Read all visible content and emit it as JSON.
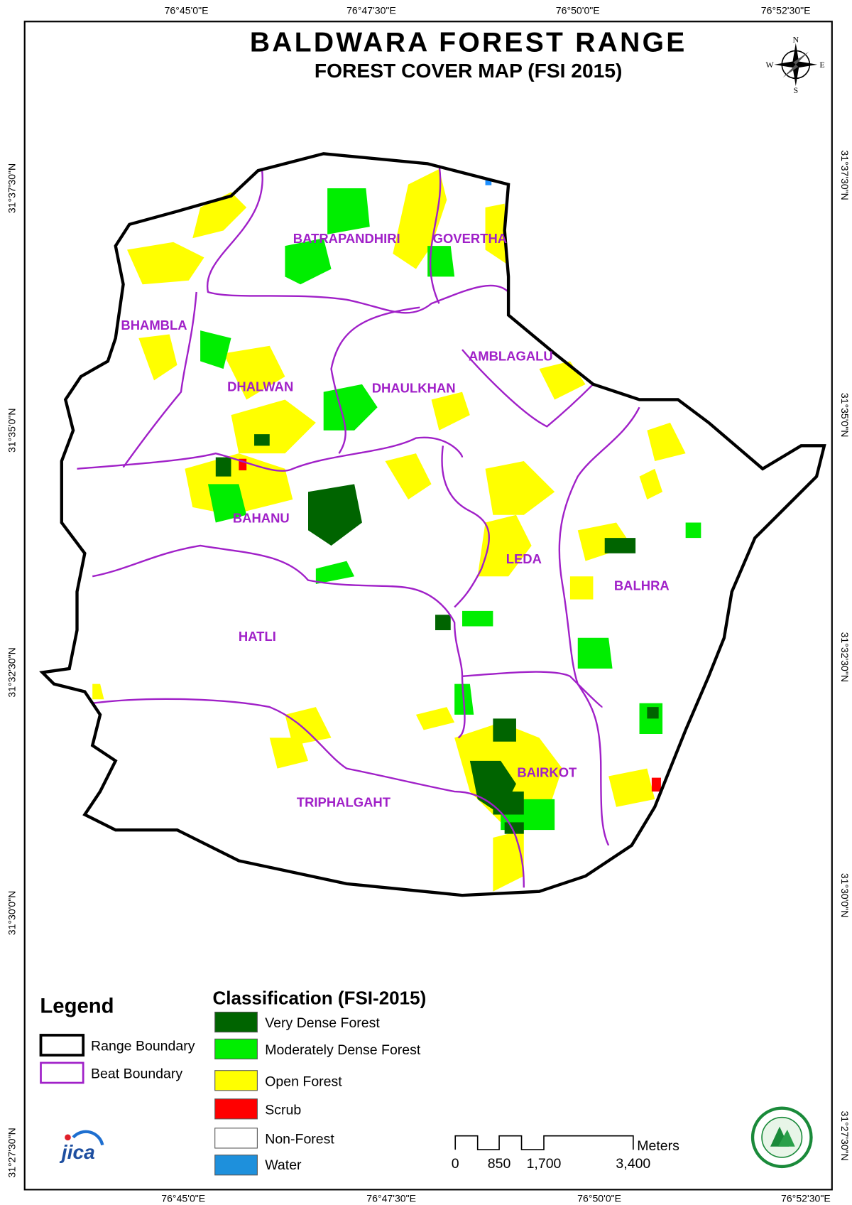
{
  "header": {
    "title": "BALDWARA FOREST RANGE",
    "subtitle": "FOREST COVER MAP (FSI 2015)"
  },
  "graticule": {
    "longitudes": [
      "76°45'0\"E",
      "76°47'30\"E",
      "76°50'0\"E",
      "76°52'30\"E"
    ],
    "latitudes": [
      "31°37'30\"N",
      "31°35'0\"N",
      "31°32'30\"N",
      "31°30'0\"N",
      "31°27'30\"N"
    ]
  },
  "compass": {
    "north": "N",
    "south": "S",
    "east": "E",
    "west": "W"
  },
  "beats": [
    "BATRAPANDHIRI",
    "GOVERTHA",
    "BHAMBLA",
    "AMBLAGALU",
    "DHALWAN",
    "DHAULKHAN",
    "BAHANU",
    "LEDA",
    "BALHRA",
    "HATLI",
    "BAIRKOT",
    "TRIPHALGAHT"
  ],
  "legend": {
    "title": "Legend",
    "items": [
      "Range Boundary",
      "Beat Boundary"
    ]
  },
  "classification": {
    "title": "Classification (FSI-2015)",
    "classes": [
      "Very Dense Forest",
      "Moderately Dense Forest",
      "Open Forest",
      "Scrub",
      "Non-Forest",
      "Water"
    ]
  },
  "scale_bar": {
    "labels": [
      "0",
      "850",
      "1,700",
      "3,400"
    ],
    "unit": "Meters"
  },
  "logo": {
    "text": "jica"
  }
}
